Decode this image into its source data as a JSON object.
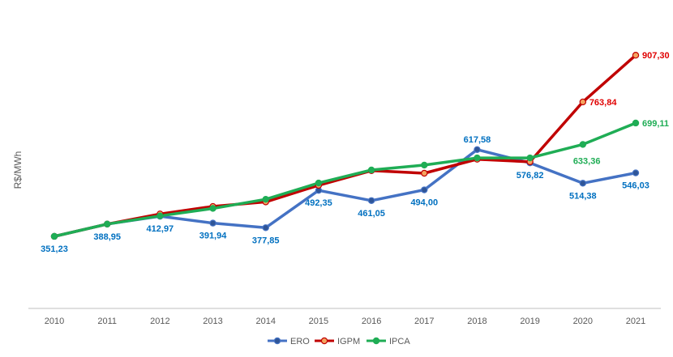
{
  "chart_data": {
    "type": "line",
    "ylabel": "R$/MWh",
    "xlabel": "",
    "title": "",
    "ylim": [
      130,
      960
    ],
    "grid": false,
    "legend_position": "bottom",
    "categories": [
      "2010",
      "2011",
      "2012",
      "2013",
      "2014",
      "2015",
      "2016",
      "2017",
      "2018",
      "2019",
      "2020",
      "2021"
    ],
    "series": [
      {
        "name": "ERO",
        "color": "#4472C4",
        "marker_fill": "#2F5597",
        "label_color": "#0070C0",
        "values": [
          351.23,
          388.95,
          412.97,
          391.94,
          377.85,
          492.35,
          461.05,
          494.0,
          617.58,
          576.82,
          514.38,
          546.03
        ],
        "labels": [
          "351,23",
          "388,95",
          "412,97",
          "391,94",
          "377,85",
          "492,35",
          "461,05",
          "494,00",
          "617,58",
          "576,82",
          "514,38",
          "546,03"
        ],
        "label_pos": [
          "below",
          "below",
          "below",
          "below",
          "below",
          "below",
          "below",
          "below",
          "above",
          "below",
          "below",
          "below"
        ]
      },
      {
        "name": "IGPM",
        "color": "#C00000",
        "marker_fill": "#F4A460",
        "label_color": "#E00000",
        "values": [
          351.23,
          388.95,
          420.0,
          443.0,
          457.0,
          508.0,
          553.0,
          545.0,
          588.0,
          580.0,
          763.84,
          907.3
        ],
        "labels": [
          "",
          "",
          "",
          "",
          "",
          "",
          "",
          "",
          "",
          "",
          "763,84",
          "907,30"
        ],
        "label_pos": [
          "",
          "",
          "",
          "",
          "",
          "",
          "",
          "",
          "",
          "",
          "right",
          "right"
        ]
      },
      {
        "name": "IPCA",
        "color": "#1FAD55",
        "marker_fill": "#1FAD55",
        "label_color": "#1FAD55",
        "values": [
          351.23,
          388.95,
          414.0,
          437.0,
          465.0,
          515.0,
          555.0,
          570.0,
          592.0,
          592.0,
          633.36,
          699.11
        ],
        "labels": [
          "",
          "",
          "",
          "",
          "",
          "",
          "",
          "",
          "",
          "",
          "633,36",
          "699,11"
        ],
        "label_pos": [
          "",
          "",
          "",
          "",
          "",
          "",
          "",
          "",
          "",
          "",
          "below-right",
          "right"
        ]
      }
    ]
  }
}
